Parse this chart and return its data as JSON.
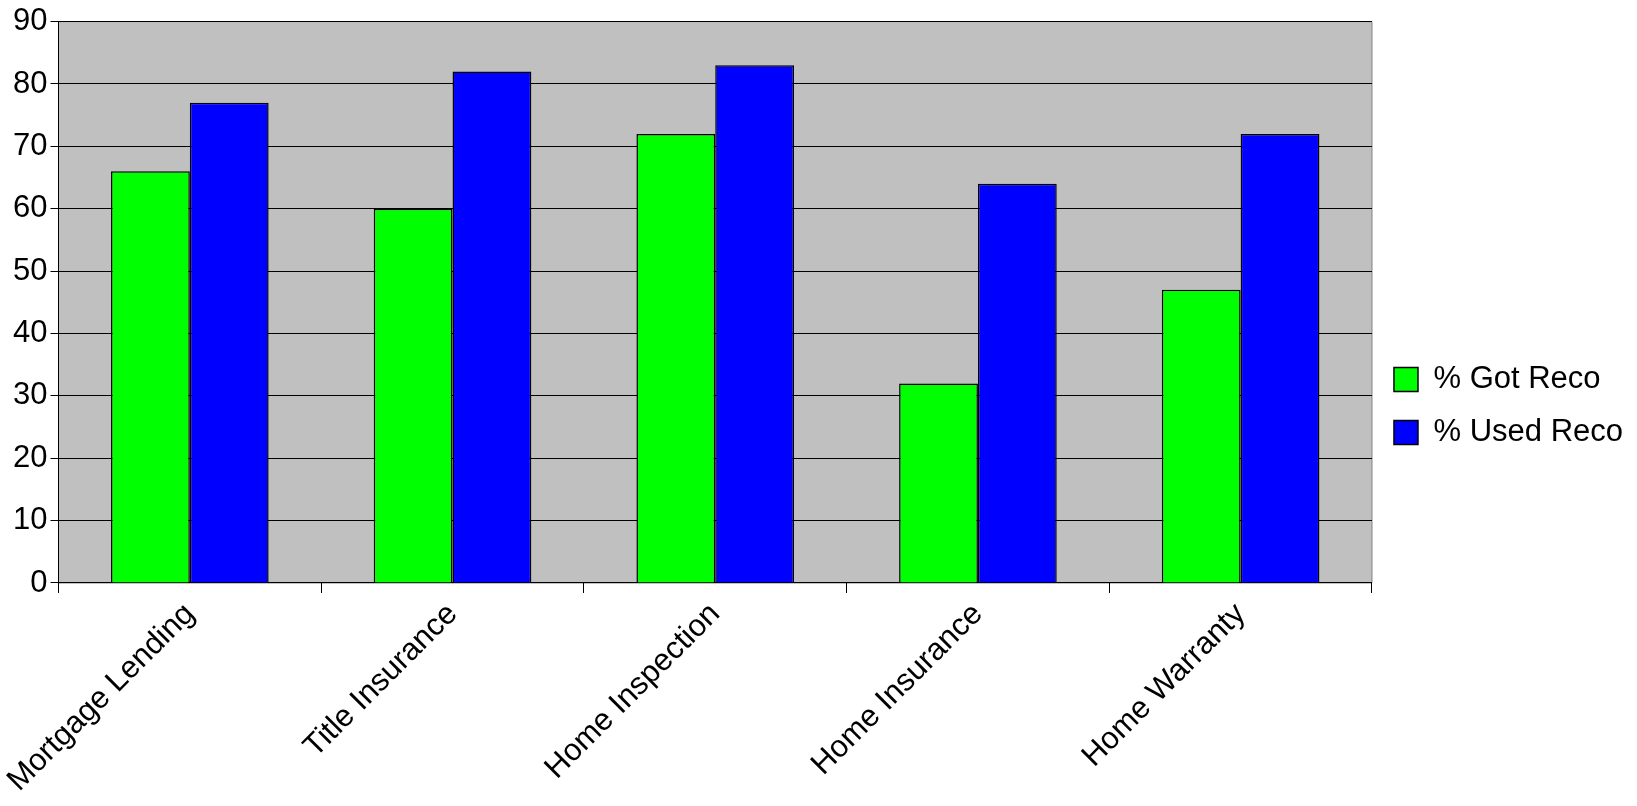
{
  "chart_data": {
    "type": "bar",
    "categories": [
      "Mortgage Lending",
      "Title Insurance",
      "Home Inspection",
      "Home Insurance",
      "Home Warranty"
    ],
    "series": [
      {
        "name": "% Got Reco",
        "color": "#00ff00",
        "values": [
          66,
          60,
          72,
          32,
          47
        ]
      },
      {
        "name": "% Used Reco",
        "color": "#0000ff",
        "values": [
          77,
          82,
          83,
          64,
          72
        ]
      }
    ],
    "ylim": [
      0,
      90
    ],
    "yticks": [
      0,
      10,
      20,
      30,
      40,
      50,
      60,
      70,
      80,
      90
    ],
    "grid": "y",
    "legend": "right"
  }
}
